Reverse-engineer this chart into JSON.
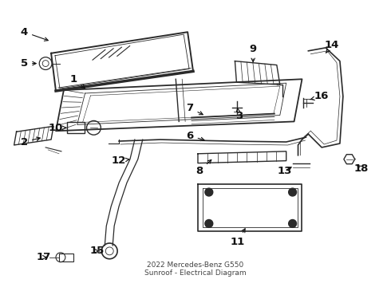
{
  "title": "2022 Mercedes-Benz G550\nSunroof - Electrical Diagram",
  "bg_color": "#ffffff",
  "line_color": "#2a2a2a",
  "label_color": "#111111",
  "font_size": 9.5
}
